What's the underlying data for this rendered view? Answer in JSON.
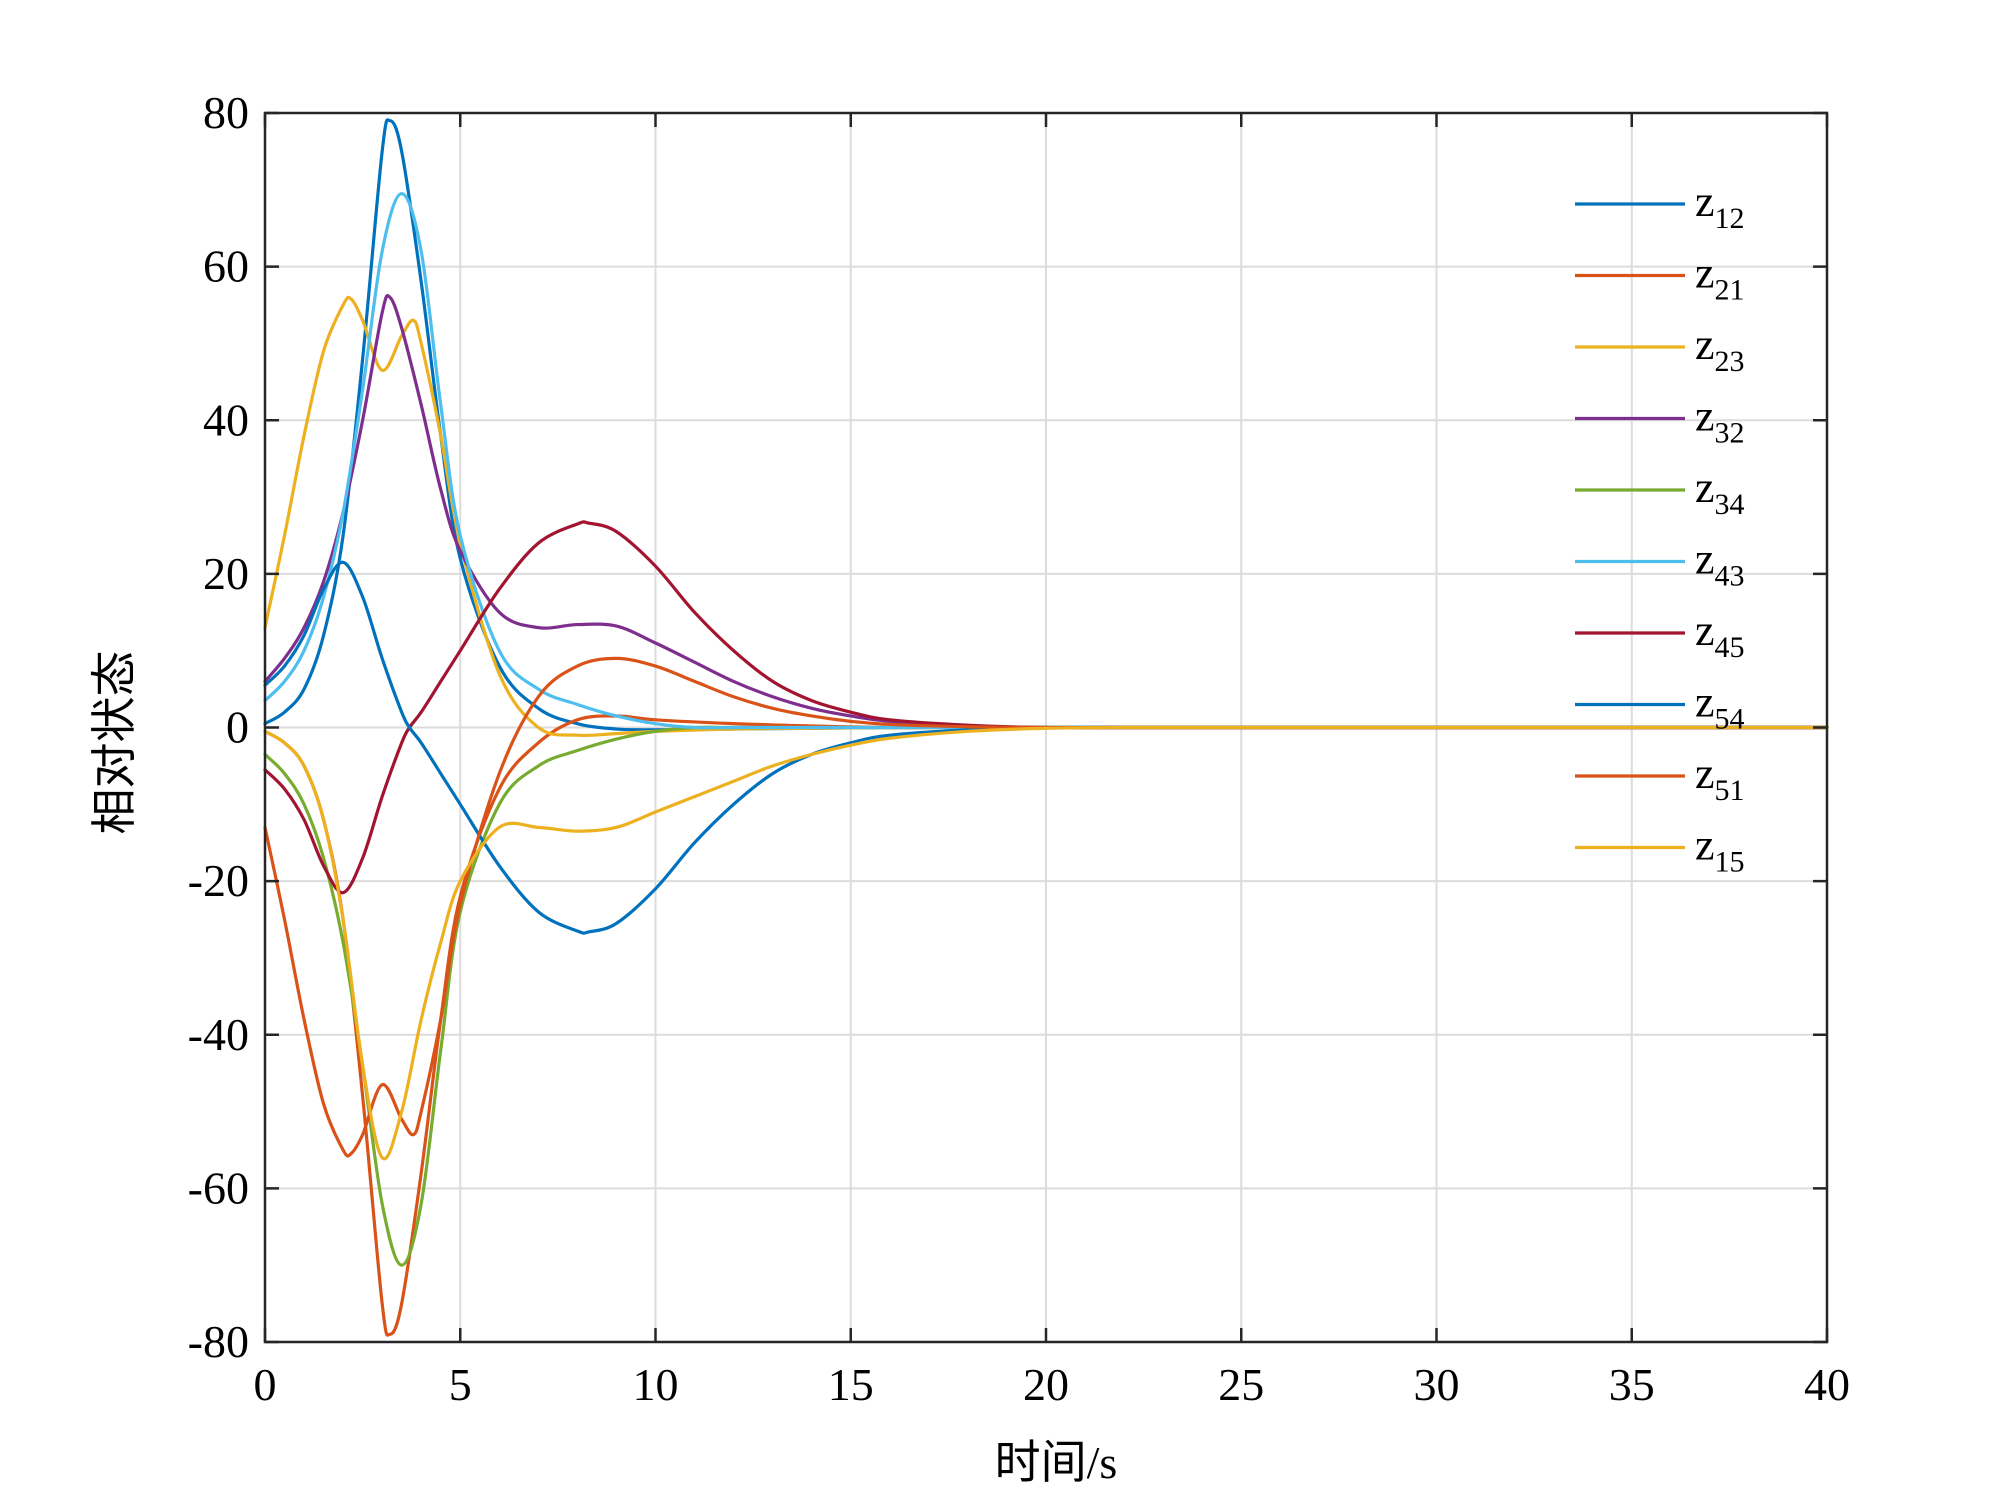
{
  "chart_data": {
    "type": "line",
    "xlabel": "时间/s",
    "ylabel": "相对状态",
    "xlim": [
      0,
      40
    ],
    "ylim": [
      -80,
      80
    ],
    "xticks": [
      0,
      5,
      10,
      15,
      20,
      25,
      30,
      35,
      40
    ],
    "yticks": [
      80,
      60,
      40,
      20,
      0,
      -20,
      -40,
      -60,
      -80
    ],
    "grid": true,
    "legend_position": "top-right",
    "series": [
      {
        "name": "z12",
        "label_base": "z",
        "label_sub": "12",
        "color": "#0072BD",
        "x": [
          0,
          0.5,
          1,
          1.5,
          2,
          2.5,
          3,
          3.2,
          3.5,
          4,
          4.5,
          5,
          6,
          7,
          8,
          9,
          10,
          12,
          14,
          16,
          18,
          20,
          22,
          25,
          30,
          35,
          40
        ],
        "y": [
          0.5,
          2,
          5,
          12,
          25,
          48,
          75,
          79,
          75,
          58,
          38,
          22,
          8,
          2.5,
          0.5,
          -0.2,
          -0.3,
          -0.2,
          -0.1,
          0,
          0,
          0,
          0,
          0,
          0,
          0,
          0
        ]
      },
      {
        "name": "z21",
        "label_base": "z",
        "label_sub": "21",
        "color": "#D95319",
        "x": [
          0,
          0.5,
          1,
          1.5,
          2,
          2.5,
          3,
          3.2,
          3.5,
          4,
          4.5,
          5,
          6,
          7,
          8,
          9,
          10,
          12,
          14,
          16,
          18,
          20,
          22,
          25,
          30,
          35,
          40
        ],
        "y": [
          -0.5,
          -2,
          -5,
          -12,
          -25,
          -48,
          -75,
          -79,
          -75,
          -58,
          -38,
          -22,
          -8,
          -2,
          1,
          1.5,
          1,
          0.5,
          0.2,
          0,
          0,
          0,
          0,
          0,
          0,
          0,
          0
        ]
      },
      {
        "name": "z23",
        "label_base": "z",
        "label_sub": "23",
        "color": "#EDB120",
        "x": [
          0,
          0.5,
          1,
          1.5,
          2,
          2.2,
          2.5,
          3,
          3.5,
          3.8,
          4,
          4.5,
          5,
          6,
          7,
          8,
          9,
          10,
          12,
          14,
          16,
          18,
          20,
          22,
          25,
          30,
          35,
          40
        ],
        "y": [
          13,
          25,
          38,
          49,
          55,
          55.8,
          53,
          46.5,
          51,
          53,
          50,
          38,
          24,
          7,
          0,
          -1,
          -0.8,
          -0.5,
          -0.2,
          -0.1,
          0,
          0,
          0,
          0,
          0,
          0,
          0,
          0
        ]
      },
      {
        "name": "z32",
        "label_base": "z",
        "label_sub": "32",
        "color": "#7E2F8E",
        "x": [
          0,
          0.5,
          1,
          1.5,
          2,
          2.5,
          3,
          3.2,
          3.5,
          4,
          4.5,
          5,
          6,
          7,
          8,
          9,
          10,
          11,
          12,
          13,
          14,
          15,
          16,
          18,
          20,
          22,
          25,
          30,
          35,
          40
        ],
        "y": [
          6,
          9,
          13,
          19,
          28,
          40,
          54,
          56,
          52,
          42,
          31,
          23,
          15,
          13,
          13.4,
          13.2,
          11,
          8.5,
          6,
          4,
          2.5,
          1.5,
          0.8,
          0.2,
          0,
          0,
          0,
          0,
          0,
          0
        ]
      },
      {
        "name": "z34",
        "label_base": "z",
        "label_sub": "34",
        "color": "#77AC30",
        "x": [
          0,
          0.5,
          1,
          1.5,
          2,
          2.5,
          3,
          3.5,
          4,
          4.5,
          5,
          6,
          7,
          8,
          9,
          10,
          11,
          12,
          14,
          16,
          18,
          20,
          22,
          25,
          30,
          35,
          40
        ],
        "y": [
          -3.5,
          -6,
          -10,
          -17,
          -28,
          -44,
          -62,
          -70,
          -62,
          -42,
          -24,
          -10,
          -5,
          -3,
          -1.5,
          -0.5,
          0,
          0,
          0,
          0,
          0,
          0,
          0,
          0,
          0,
          0,
          0
        ]
      },
      {
        "name": "z43",
        "label_base": "z",
        "label_sub": "43",
        "color": "#4DBEEE",
        "x": [
          0,
          0.5,
          1,
          1.5,
          2,
          2.5,
          3,
          3.5,
          4,
          4.5,
          5,
          6,
          7,
          8,
          9,
          10,
          11,
          12,
          14,
          16,
          18,
          20,
          22,
          25,
          30,
          35,
          40
        ],
        "y": [
          3.5,
          6,
          10,
          17,
          28,
          44,
          62,
          69.5,
          62,
          42,
          25,
          10,
          5,
          3,
          1.5,
          0.5,
          0,
          0,
          0,
          0,
          0,
          0,
          0,
          0,
          0,
          0,
          0
        ]
      },
      {
        "name": "z45",
        "label_base": "z",
        "label_sub": "45",
        "color": "#A2142F",
        "x": [
          0,
          0.5,
          1,
          1.5,
          2,
          2.5,
          3,
          3.5,
          3.7,
          4,
          4.5,
          5,
          6,
          7,
          8,
          8.3,
          9,
          10,
          11,
          12,
          13,
          14,
          15,
          16,
          18,
          20,
          22,
          25,
          30,
          35,
          40
        ],
        "y": [
          -5.5,
          -8,
          -12,
          -18,
          -21.5,
          -17,
          -9,
          -2,
          0,
          2,
          6,
          10,
          18,
          24,
          26.5,
          26.6,
          25.5,
          21,
          15,
          10,
          6,
          3.5,
          2,
          1,
          0.3,
          0,
          0,
          0,
          0,
          0,
          0
        ]
      },
      {
        "name": "z54",
        "label_base": "z",
        "label_sub": "54",
        "color": "#0072BD",
        "x": [
          0,
          0.5,
          1,
          1.5,
          2,
          2.5,
          3,
          3.5,
          3.7,
          4,
          4.5,
          5,
          6,
          7,
          8,
          8.3,
          9,
          10,
          11,
          12,
          13,
          14,
          15,
          16,
          18,
          20,
          22,
          25,
          30,
          35,
          40
        ],
        "y": [
          5.5,
          8,
          12,
          18,
          21.5,
          17,
          9,
          2,
          0,
          -2,
          -6,
          -10,
          -18,
          -24,
          -26.5,
          -26.6,
          -25.5,
          -21,
          -15,
          -10,
          -6,
          -3.5,
          -2,
          -1,
          -0.3,
          0,
          0,
          0,
          0,
          0,
          0
        ]
      },
      {
        "name": "z51",
        "label_base": "z",
        "label_sub": "51",
        "color": "#D95319",
        "x": [
          0,
          0.5,
          1,
          1.5,
          2,
          2.2,
          2.5,
          3,
          3.5,
          3.8,
          4,
          4.5,
          5,
          6,
          7,
          8,
          9,
          10,
          11,
          12,
          13,
          14,
          15,
          16,
          18,
          20,
          22,
          25,
          30,
          35,
          40
        ],
        "y": [
          -13,
          -25,
          -38,
          -49,
          -55,
          -55.5,
          -53,
          -46.5,
          -51,
          -53,
          -50,
          -38,
          -23,
          -6,
          4,
          8,
          9,
          8,
          6,
          4,
          2.5,
          1.5,
          0.8,
          0.4,
          0.1,
          0,
          0,
          0,
          0,
          0,
          0
        ]
      },
      {
        "name": "z15",
        "label_base": "z",
        "label_sub": "15",
        "color": "#EDB120",
        "x": [
          0,
          0.5,
          1,
          1.5,
          2,
          2.5,
          3,
          3.5,
          4,
          4.5,
          5,
          6,
          7,
          8,
          9,
          10,
          11,
          12,
          13,
          14,
          15,
          16,
          18,
          20,
          22,
          25,
          30,
          35,
          40
        ],
        "y": [
          -0.5,
          -2,
          -5,
          -12,
          -25,
          -44,
          -56,
          -50,
          -38,
          -28,
          -20,
          -13,
          -13,
          -13.5,
          -13,
          -11,
          -9,
          -7,
          -5,
          -3.5,
          -2.3,
          -1.4,
          -0.5,
          -0.1,
          0,
          0,
          0,
          0,
          0
        ]
      }
    ]
  }
}
